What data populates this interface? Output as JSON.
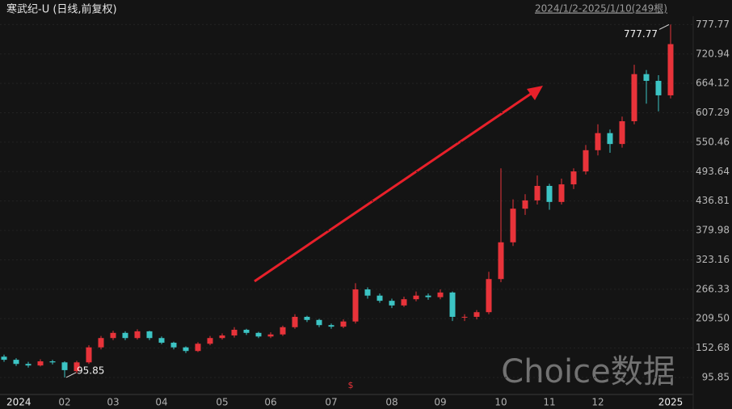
{
  "chart_data": {
    "type": "candlestick",
    "title": "寒武纪-U (日线,前复权)",
    "subtitle": "2024/1/2-2025/1/10(249根)",
    "watermark": "Choice数据",
    "event_marker": "$",
    "categories": [
      "2024",
      null,
      null,
      null,
      null,
      "02",
      null,
      null,
      null,
      "03",
      null,
      null,
      null,
      "04",
      null,
      null,
      null,
      null,
      "05",
      null,
      null,
      null,
      "06",
      null,
      null,
      null,
      null,
      "07",
      null,
      null,
      null,
      null,
      "08",
      null,
      null,
      null,
      "09",
      null,
      null,
      null,
      null,
      "10",
      null,
      null,
      null,
      "11",
      null,
      null,
      null,
      "12",
      null,
      null,
      null,
      null,
      null,
      "2025"
    ],
    "open": [
      136,
      130,
      122,
      119,
      127,
      125,
      108,
      125,
      154,
      172,
      182,
      172,
      185,
      172,
      163,
      154,
      147,
      161,
      172,
      177,
      188,
      182,
      175,
      179,
      193,
      213,
      207,
      197,
      194,
      204,
      266,
      254,
      244,
      235,
      247,
      254,
      251,
      260,
      213,
      213,
      222,
      286,
      357,
      422,
      438,
      466,
      435,
      469,
      494,
      535,
      568,
      547,
      591,
      682,
      669,
      641
    ],
    "high": [
      140,
      133,
      126,
      131,
      130,
      127,
      128,
      158,
      176,
      186,
      185,
      189,
      186,
      175,
      165,
      156,
      164,
      176,
      181,
      193,
      190,
      184,
      183,
      196,
      218,
      215,
      209,
      200,
      208,
      278,
      270,
      258,
      248,
      252,
      262,
      258,
      266,
      262,
      218,
      226,
      300,
      500,
      440,
      450,
      486,
      470,
      480,
      500,
      545,
      585,
      575,
      600,
      700,
      690,
      680,
      777.77
    ],
    "low": [
      126,
      118,
      115,
      117,
      121,
      95.85,
      104,
      122,
      150,
      168,
      168,
      169,
      168,
      160,
      150,
      143,
      145,
      158,
      169,
      173,
      178,
      172,
      172,
      176,
      190,
      203,
      193,
      190,
      191,
      200,
      248,
      240,
      230,
      232,
      243,
      246,
      247,
      205,
      205,
      208,
      218,
      280,
      350,
      410,
      430,
      420,
      430,
      460,
      488,
      525,
      530,
      540,
      585,
      625,
      610,
      635
    ],
    "close": [
      130,
      122,
      119,
      127,
      125,
      110,
      125,
      154,
      172,
      182,
      172,
      185,
      172,
      163,
      154,
      147,
      161,
      172,
      177,
      188,
      182,
      175,
      179,
      193,
      213,
      207,
      197,
      194,
      204,
      266,
      254,
      244,
      235,
      247,
      254,
      251,
      260,
      213,
      213,
      222,
      286,
      357,
      422,
      438,
      466,
      435,
      469,
      494,
      535,
      568,
      547,
      591,
      682,
      669,
      641,
      740
    ],
    "up_color": "#e8333a",
    "down_color": "#3cc4c4",
    "ylim": [
      63,
      794
    ],
    "yticks": [
      95.85,
      152.68,
      {
        "value": 209.5,
        "label": "209.50"
      },
      266.33,
      323.16,
      379.98,
      436.81,
      493.64,
      550.46,
      607.29,
      664.12,
      720.94,
      777.77
    ],
    "grid": true,
    "min_label_index": 5,
    "max_label_index": 55
  }
}
